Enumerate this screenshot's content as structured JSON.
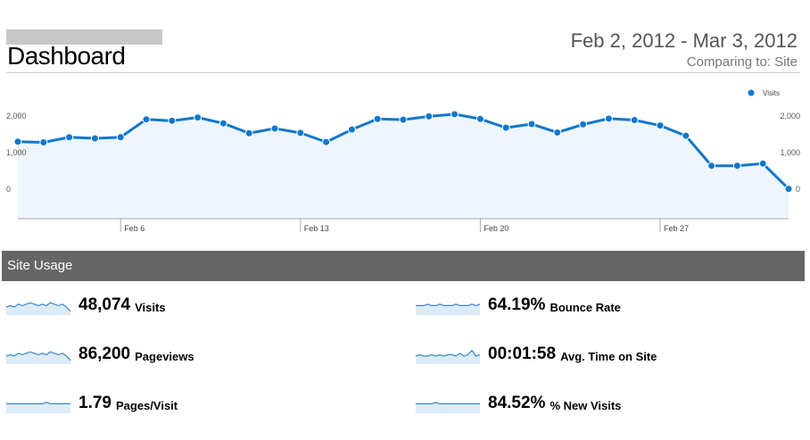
{
  "header": {
    "title": "Dashboard",
    "date_range": "Feb 2, 2012 - Mar 3, 2012",
    "comparing": "Comparing to: Site"
  },
  "chart_data": {
    "type": "line",
    "title": "",
    "legend": [
      "Visits"
    ],
    "legend_position": "top-right",
    "x_tick_labels": [
      "Feb 6",
      "Feb 13",
      "Feb 20",
      "Feb 27"
    ],
    "y_tick_labels": [
      "2,000",
      "1,000",
      "0"
    ],
    "ylim": [
      0,
      2000
    ],
    "grid": false,
    "series": [
      {
        "name": "Visits",
        "color": "#1177cc",
        "x": [
          "Feb 2",
          "Feb 3",
          "Feb 4",
          "Feb 5",
          "Feb 6",
          "Feb 7",
          "Feb 8",
          "Feb 9",
          "Feb 10",
          "Feb 11",
          "Feb 12",
          "Feb 13",
          "Feb 14",
          "Feb 15",
          "Feb 16",
          "Feb 17",
          "Feb 18",
          "Feb 19",
          "Feb 20",
          "Feb 21",
          "Feb 22",
          "Feb 23",
          "Feb 24",
          "Feb 25",
          "Feb 26",
          "Feb 27",
          "Feb 28",
          "Feb 29",
          "Mar 1",
          "Mar 2",
          "Mar 3"
        ],
        "values": [
          1300,
          1280,
          1420,
          1390,
          1420,
          1910,
          1870,
          1960,
          1800,
          1530,
          1660,
          1540,
          1290,
          1630,
          1920,
          1900,
          1990,
          2050,
          1920,
          1680,
          1780,
          1550,
          1770,
          1930,
          1890,
          1740,
          1460,
          640,
          640,
          700,
          10
        ]
      }
    ]
  },
  "site_usage": {
    "title": "Site Usage",
    "metrics": [
      {
        "value": "48,074",
        "label": "Visits",
        "spark": [
          5,
          6,
          5,
          7,
          6,
          7,
          8,
          7,
          6,
          7,
          6,
          8,
          7,
          6,
          7,
          5,
          2
        ]
      },
      {
        "value": "64.19%",
        "label": "Bounce Rate",
        "spark": [
          6,
          6,
          6,
          7,
          6,
          6,
          7,
          6,
          6,
          6,
          7,
          6,
          6,
          6,
          7,
          6,
          7
        ]
      },
      {
        "value": "86,200",
        "label": "Pageviews",
        "spark": [
          5,
          6,
          5,
          7,
          6,
          7,
          8,
          7,
          6,
          7,
          6,
          8,
          7,
          6,
          7,
          5,
          2
        ]
      },
      {
        "value": "00:01:58",
        "label": "Avg. Time on Site",
        "spark": [
          5,
          6,
          5,
          5,
          6,
          5,
          6,
          5,
          6,
          6,
          5,
          7,
          5,
          6,
          9,
          5,
          6
        ]
      },
      {
        "value": "1.79",
        "label": "Pages/Visit",
        "spark": [
          6,
          6,
          6,
          6,
          6,
          6,
          6,
          6,
          6,
          6,
          7,
          6,
          6,
          6,
          6,
          6,
          6
        ]
      },
      {
        "value": "84.52%",
        "label": "% New Visits",
        "spark": [
          6,
          6,
          6,
          6,
          6,
          7,
          6,
          6,
          6,
          6,
          6,
          6,
          6,
          6,
          6,
          6,
          6
        ]
      }
    ]
  }
}
